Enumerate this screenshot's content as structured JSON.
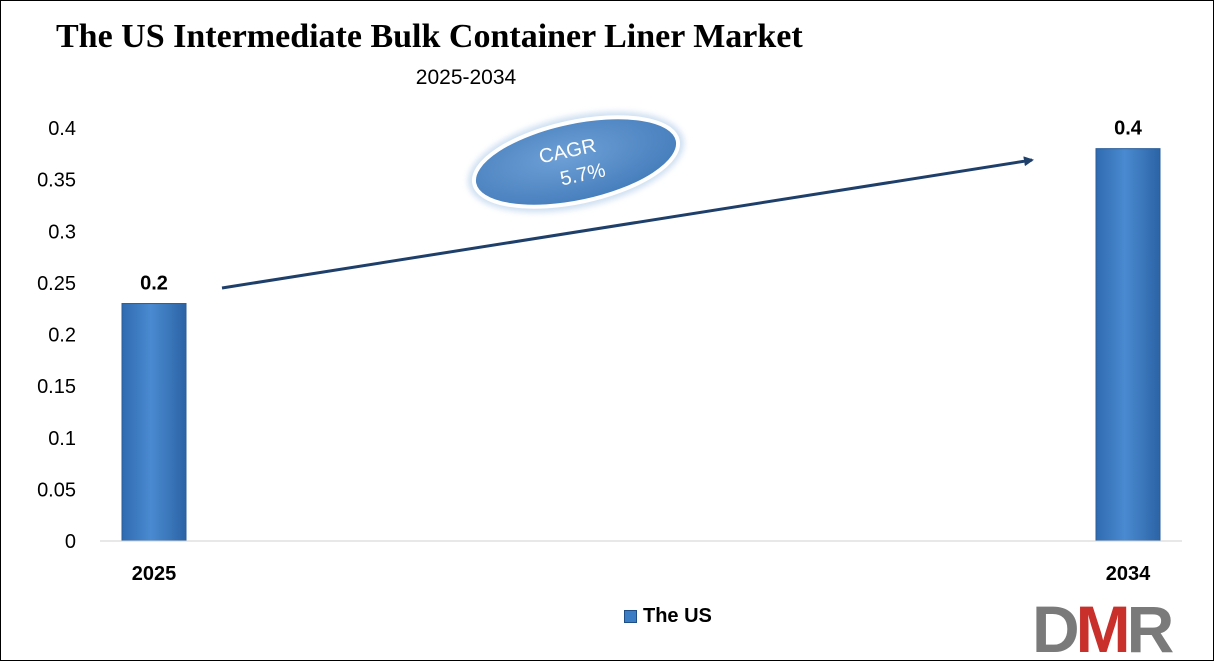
{
  "chart_data": {
    "type": "bar",
    "title": "The US Intermediate Bulk Container Liner Market",
    "subtitle": "2025-2034",
    "categories": [
      "2025",
      "2034"
    ],
    "series": [
      {
        "name": "The US",
        "values": [
          0.23,
          0.38
        ],
        "data_labels": [
          "0.2",
          "0.4"
        ]
      }
    ],
    "ylim": [
      0,
      0.4
    ],
    "yticks": [
      "0",
      "0.05",
      "0.1",
      "0.15",
      "0.2",
      "0.25",
      "0.3",
      "0.35",
      "0.4"
    ],
    "grid": false,
    "legend_position": "bottom",
    "annotation": {
      "line1": "CAGR",
      "line2": "5.7%"
    },
    "bar_color": "#3b7dc4",
    "arrow_color": "#1f3f6b"
  },
  "logo": {
    "text": "DMR"
  }
}
